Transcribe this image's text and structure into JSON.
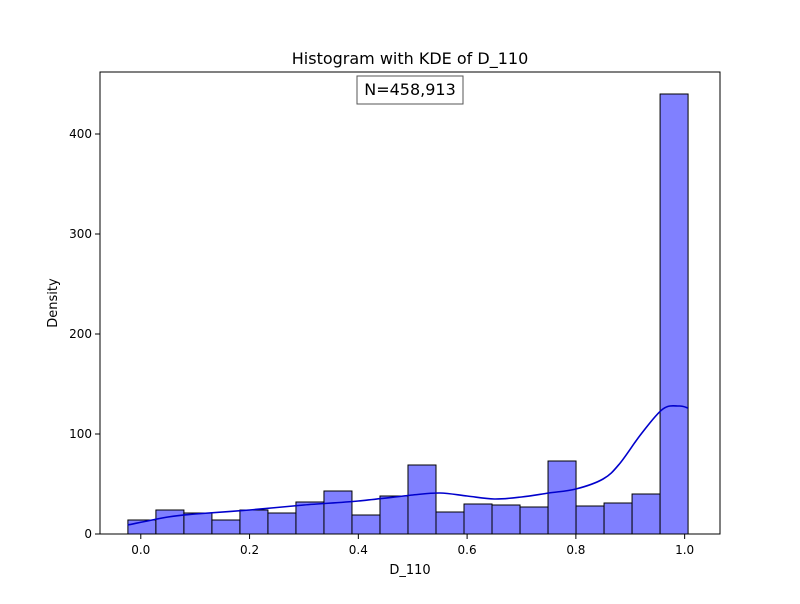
{
  "chart_data": {
    "type": "bar",
    "title": "Histogram with KDE of D_110",
    "xlabel": "D_110",
    "ylabel": "Density",
    "annotation": "N=458,913",
    "xlim": [
      -0.075,
      1.065
    ],
    "ylim": [
      0,
      462
    ],
    "xticks": [
      0.0,
      0.2,
      0.4,
      0.6,
      0.8,
      1.0
    ],
    "xtick_labels": [
      "0.0",
      "0.2",
      "0.4",
      "0.6",
      "0.8",
      "1.0"
    ],
    "yticks": [
      0,
      100,
      200,
      300,
      400
    ],
    "ytick_labels": [
      "0",
      "100",
      "200",
      "300",
      "400"
    ],
    "grid": false,
    "bar_color": "#8080ff",
    "bar_edge_color": "#000000",
    "kde_color": "#0000cc",
    "bins": [
      {
        "x0": -0.0237,
        "x1": 0.0278,
        "value": 14
      },
      {
        "x0": 0.0278,
        "x1": 0.0793,
        "value": 24
      },
      {
        "x0": 0.0793,
        "x1": 0.1308,
        "value": 21
      },
      {
        "x0": 0.1308,
        "x1": 0.1823,
        "value": 14
      },
      {
        "x0": 0.1823,
        "x1": 0.2338,
        "value": 24
      },
      {
        "x0": 0.2338,
        "x1": 0.2853,
        "value": 21
      },
      {
        "x0": 0.2853,
        "x1": 0.3368,
        "value": 32
      },
      {
        "x0": 0.3368,
        "x1": 0.3883,
        "value": 43
      },
      {
        "x0": 0.3883,
        "x1": 0.4398,
        "value": 19
      },
      {
        "x0": 0.4398,
        "x1": 0.4913,
        "value": 38
      },
      {
        "x0": 0.4913,
        "x1": 0.5428,
        "value": 69
      },
      {
        "x0": 0.5428,
        "x1": 0.5943,
        "value": 22
      },
      {
        "x0": 0.5943,
        "x1": 0.6458,
        "value": 30
      },
      {
        "x0": 0.6458,
        "x1": 0.6973,
        "value": 29
      },
      {
        "x0": 0.6973,
        "x1": 0.7488,
        "value": 27
      },
      {
        "x0": 0.7488,
        "x1": 0.8003,
        "value": 73
      },
      {
        "x0": 0.8003,
        "x1": 0.8518,
        "value": 28
      },
      {
        "x0": 0.8518,
        "x1": 0.9033,
        "value": 31
      },
      {
        "x0": 0.9033,
        "x1": 0.9548,
        "value": 40
      },
      {
        "x0": 0.9548,
        "x1": 1.0063,
        "value": 440
      }
    ],
    "kde": {
      "x": [
        -0.024,
        0.05,
        0.1,
        0.2,
        0.3,
        0.4,
        0.5,
        0.55,
        0.6,
        0.65,
        0.7,
        0.75,
        0.8,
        0.85,
        0.88,
        0.92,
        0.96,
        0.99,
        1.006
      ],
      "y": [
        9,
        17,
        20,
        24,
        29,
        33,
        39,
        41,
        38,
        35,
        37,
        41,
        45,
        55,
        70,
        100,
        125,
        128,
        126
      ]
    }
  }
}
